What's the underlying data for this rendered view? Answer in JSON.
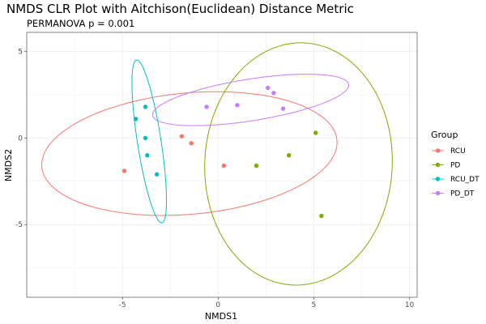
{
  "chart_data": {
    "type": "scatter",
    "title": "NMDS CLR Plot with Aitchison(Euclidean) Distance Metric",
    "subtitle": "PERMANOVA p = 0.001",
    "xlabel": "NMDS1",
    "ylabel": "NMDS2",
    "xlim": [
      -10,
      10.4
    ],
    "ylim": [
      -9.2,
      6.1
    ],
    "x_ticks": [
      -5,
      0,
      5,
      10
    ],
    "y_ticks": [
      -5,
      0,
      5
    ],
    "grid": true,
    "legend": {
      "title": "Group",
      "position": "right"
    },
    "series": [
      {
        "name": "RCU",
        "color": "#F8766D",
        "points": [
          [
            -4.9,
            -1.9
          ],
          [
            -1.9,
            0.1
          ],
          [
            -1.4,
            -0.3
          ],
          [
            0.3,
            -1.6
          ]
        ],
        "ellipse": {
          "center": [
            -1.5,
            -0.9
          ],
          "semi_major": 7.75,
          "semi_minor": 3.5,
          "angle_deg": 6
        }
      },
      {
        "name": "PD",
        "color": "#7CAE00",
        "points": [
          [
            2.0,
            -1.6
          ],
          [
            3.7,
            -1.0
          ],
          [
            5.1,
            0.3
          ],
          [
            5.4,
            -4.5
          ]
        ],
        "ellipse": {
          "center": [
            4.2,
            -1.5
          ],
          "semi_major": 7.0,
          "semi_minor": 4.9,
          "angle_deg": 88
        }
      },
      {
        "name": "RCU_DT",
        "color": "#00BFC4",
        "points": [
          [
            -4.3,
            1.1
          ],
          [
            -3.8,
            1.8
          ],
          [
            -3.8,
            0.0
          ],
          [
            -3.7,
            -1.0
          ],
          [
            -3.2,
            -2.1
          ]
        ],
        "ellipse": {
          "center": [
            -3.6,
            -0.2
          ],
          "semi_major": 4.75,
          "semi_minor": 0.62,
          "angle_deg": 98
        }
      },
      {
        "name": "PD_DT",
        "color": "#C77CFF",
        "points": [
          [
            -0.6,
            1.8
          ],
          [
            1.0,
            1.9
          ],
          [
            2.6,
            2.9
          ],
          [
            2.9,
            2.6
          ],
          [
            3.4,
            1.7
          ]
        ],
        "ellipse": {
          "center": [
            1.7,
            2.2
          ],
          "semi_major": 5.2,
          "semi_minor": 1.2,
          "angle_deg": 10
        }
      }
    ]
  }
}
